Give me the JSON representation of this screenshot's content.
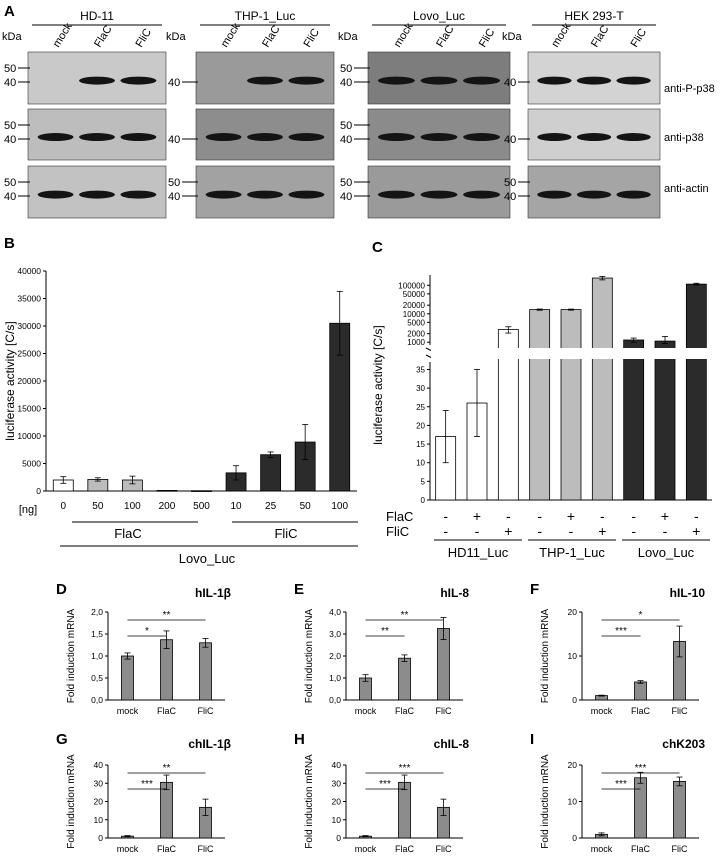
{
  "panel_letters": [
    "A",
    "B",
    "C",
    "D",
    "E",
    "F",
    "G",
    "H",
    "I"
  ],
  "blots": {
    "kda_label": "kDa",
    "lanes": [
      "mock",
      "FlaC",
      "FliC"
    ],
    "right_labels": [
      "anti-P-p38",
      "anti-p38",
      "anti-actin"
    ],
    "panels": [
      {
        "title": "HD-11",
        "strip_shades": [
          "#c9c9c9",
          "#bdbdbd",
          "#c2c2c2"
        ],
        "markers": [
          [
            "50",
            "40"
          ],
          [
            "50",
            "40"
          ],
          [
            "50",
            "40"
          ]
        ],
        "bands": [
          [
            0,
            1,
            1
          ],
          [
            1,
            1,
            1
          ],
          [
            1,
            1,
            1
          ]
        ]
      },
      {
        "title": "THP-1_Luc",
        "strip_shades": [
          "#9a9a9a",
          "#8d8d8d",
          "#a2a2a2"
        ],
        "markers": [
          [
            "40"
          ],
          [
            "40"
          ],
          [
            "50",
            "40"
          ]
        ],
        "bands": [
          [
            0,
            1,
            1
          ],
          [
            1,
            1,
            1
          ],
          [
            1,
            1,
            1
          ]
        ]
      },
      {
        "title": "Lovo_Luc",
        "strip_shades": [
          "#7d7d7d",
          "#8b8b8b",
          "#9a9a9a"
        ],
        "markers": [
          [
            "50",
            "40"
          ],
          [
            "50",
            "40"
          ],
          [
            "50",
            "40"
          ]
        ],
        "bands": [
          [
            1,
            1,
            1
          ],
          [
            1,
            1,
            1
          ],
          [
            1,
            1,
            1
          ]
        ]
      },
      {
        "title": "HEK 293-T",
        "strip_shades": [
          "#d3d3d3",
          "#cfcfcf",
          "#a5a5a5"
        ],
        "markers": [
          [
            "40"
          ],
          [
            "40"
          ],
          [
            "50",
            "40"
          ]
        ],
        "bands": [
          [
            1,
            1,
            1
          ],
          [
            1,
            1,
            1
          ],
          [
            1,
            1,
            1
          ]
        ]
      }
    ]
  },
  "chart_data": [
    {
      "id": "B",
      "type": "bar",
      "ylabel": "luciferase activity [C/s]",
      "ylim": [
        0,
        40000
      ],
      "yticks": [
        "0",
        "5000",
        "10000",
        "15000",
        "20000",
        "25000",
        "30000",
        "35000",
        "40000"
      ],
      "unit_label": "[ng]",
      "categories": [
        "0",
        "50",
        "100",
        "200",
        "500",
        "10",
        "25",
        "50",
        "100"
      ],
      "values": [
        2000,
        2100,
        2000,
        100,
        50,
        3300,
        6600,
        8900,
        30500
      ],
      "errors": [
        600,
        300,
        700,
        0,
        0,
        1300,
        500,
        3200,
        5800
      ],
      "fills": [
        "#ffffff",
        "#bcbcbc",
        "#bcbcbc",
        "#bcbcbc",
        "#bcbcbc",
        "#2b2b2b",
        "#2b2b2b",
        "#2b2b2b",
        "#2b2b2b"
      ],
      "group_labels": [
        "FlaC",
        "FliC"
      ],
      "bottom_label": "Lovo_Luc"
    },
    {
      "id": "C",
      "type": "bar",
      "ylabel": "luciferase activity [C/s]",
      "scale": "broken (linear 0–35, log 1000–200000)",
      "lower_ticks": [
        "0",
        "5",
        "10",
        "15",
        "20",
        "25",
        "30",
        "35"
      ],
      "upper_ticks": [
        "1000",
        "2000",
        "5000",
        "10000",
        "20000",
        "50000",
        "100000"
      ],
      "values": [
        17,
        26,
        2800,
        14000,
        14000,
        180000,
        1200,
        1100,
        110000
      ],
      "errors": [
        7,
        9,
        700,
        700,
        600,
        25000,
        200,
        500,
        8000
      ],
      "fills": [
        "#ffffff",
        "#ffffff",
        "#ffffff",
        "#bcbcbc",
        "#bcbcbc",
        "#bcbcbc",
        "#2b2b2b",
        "#2b2b2b",
        "#2b2b2b"
      ],
      "row_labels": [
        "FlaC",
        "FliC"
      ],
      "flac": [
        "-",
        "+",
        "-",
        "-",
        "+",
        "-",
        "-",
        "+",
        "-"
      ],
      "flic": [
        "-",
        "-",
        "+",
        "-",
        "-",
        "+",
        "-",
        "-",
        "+"
      ],
      "group_labels": [
        "HD11_Luc",
        "THP-1_Luc",
        "Lovo_Luc"
      ]
    },
    {
      "id": "D",
      "type": "bar",
      "title": "hIL-1β",
      "ylabel": "Fold induction mRNA",
      "categories": [
        "mock",
        "FlaC",
        "FliC"
      ],
      "values": [
        1.0,
        1.37,
        1.3
      ],
      "errors": [
        0.07,
        0.2,
        0.1
      ],
      "ylim": [
        0,
        2.0
      ],
      "yticks": [
        "0,0",
        "0,5",
        "1,0",
        "1,5",
        "2,0"
      ],
      "sig": [
        {
          "from": 0,
          "to": 1,
          "label": "*"
        },
        {
          "from": 0,
          "to": 2,
          "label": "**"
        }
      ]
    },
    {
      "id": "E",
      "type": "bar",
      "title": "hIL-8",
      "ylabel": "Fold induction mRNA",
      "categories": [
        "mock",
        "FlaC",
        "FliC"
      ],
      "values": [
        1.0,
        1.9,
        3.25
      ],
      "errors": [
        0.15,
        0.15,
        0.5
      ],
      "ylim": [
        0,
        4.0
      ],
      "yticks": [
        "0,0",
        "1,0",
        "2,0",
        "3,0",
        "4,0"
      ],
      "sig": [
        {
          "from": 0,
          "to": 1,
          "label": "**"
        },
        {
          "from": 0,
          "to": 2,
          "label": "**"
        }
      ]
    },
    {
      "id": "F",
      "type": "bar",
      "title": "hIL-10",
      "ylabel": "Fold induction mRNA",
      "categories": [
        "mock",
        "FlaC",
        "FliC"
      ],
      "values": [
        1.0,
        4.1,
        13.3
      ],
      "errors": [
        0.1,
        0.3,
        3.5
      ],
      "ylim": [
        0,
        20
      ],
      "yticks": [
        "0",
        "10",
        "20"
      ],
      "sig": [
        {
          "from": 0,
          "to": 1,
          "label": "***"
        },
        {
          "from": 0,
          "to": 2,
          "label": "*"
        }
      ]
    },
    {
      "id": "G",
      "type": "bar",
      "title": "chIL-1β",
      "ylabel": "Fold induction mRNA",
      "categories": [
        "mock",
        "FlaC",
        "FliC"
      ],
      "values": [
        1.0,
        30.5,
        16.8
      ],
      "errors": [
        0.3,
        4.0,
        4.5
      ],
      "ylim": [
        0,
        40
      ],
      "yticks": [
        "0",
        "10",
        "20",
        "30",
        "40"
      ],
      "sig": [
        {
          "from": 0,
          "to": 1,
          "label": "***"
        },
        {
          "from": 0,
          "to": 2,
          "label": "**"
        }
      ]
    },
    {
      "id": "H",
      "type": "bar",
      "title": "chIL-8",
      "ylabel": "Fold induction mRNA",
      "categories": [
        "mock",
        "FlaC",
        "FliC"
      ],
      "values": [
        1.0,
        30.5,
        16.8
      ],
      "errors": [
        0.3,
        4.0,
        4.5
      ],
      "ylim": [
        0,
        40
      ],
      "yticks": [
        "0",
        "10",
        "20",
        "30",
        "40"
      ],
      "sig": [
        {
          "from": 0,
          "to": 1,
          "label": "***"
        },
        {
          "from": 0,
          "to": 2,
          "label": "***"
        }
      ]
    },
    {
      "id": "I",
      "type": "bar",
      "title": "chK203",
      "ylabel": "Fold induction mRNA",
      "categories": [
        "mock",
        "FlaC",
        "FliC"
      ],
      "values": [
        1.0,
        16.5,
        15.5
      ],
      "errors": [
        0.4,
        1.5,
        1.2
      ],
      "ylim": [
        0,
        20
      ],
      "yticks": [
        "0",
        "10",
        "20"
      ],
      "sig": [
        {
          "from": 0,
          "to": 1,
          "label": "***"
        },
        {
          "from": 0,
          "to": 2,
          "label": "***"
        }
      ]
    }
  ]
}
